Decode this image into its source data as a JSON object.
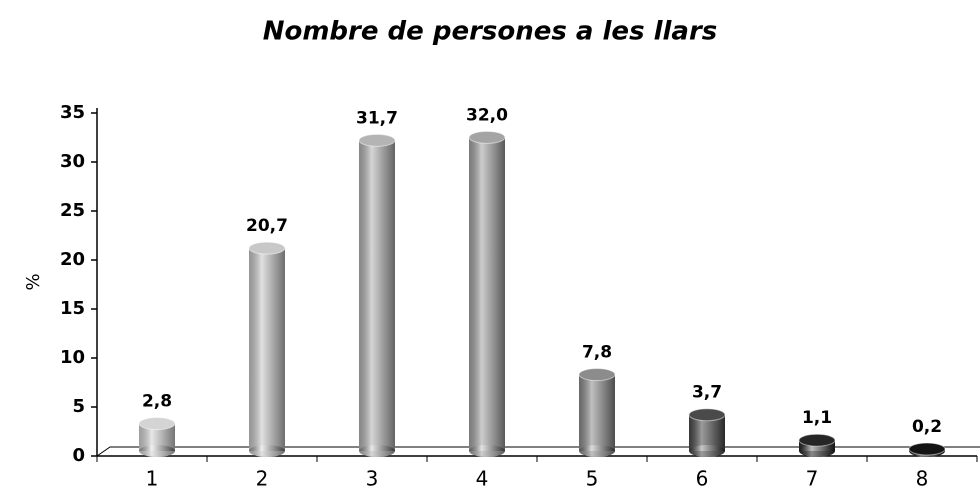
{
  "chart_data": {
    "type": "bar",
    "title": "Nombre de persones a les llars",
    "y_label": "%",
    "categories": [
      "1",
      "2",
      "3",
      "4",
      "5",
      "6",
      "7",
      "8"
    ],
    "values": [
      2.8,
      20.7,
      31.7,
      32.0,
      7.8,
      3.7,
      1.1,
      0.2
    ],
    "value_labels": [
      "2,8",
      "20,7",
      "31,7",
      "32,0",
      "7,8",
      "3,7",
      "1,1",
      "0,2"
    ],
    "colors": [
      "#d4d4d4",
      "#c8c8c8",
      "#b4b4b4",
      "#a4a4a4",
      "#8c8c8c",
      "#4a4a4a",
      "#262626",
      "#141414"
    ],
    "ylim": [
      0,
      35
    ],
    "yticks": [
      0,
      5,
      10,
      15,
      20,
      25,
      30,
      35
    ],
    "grid": false
  }
}
